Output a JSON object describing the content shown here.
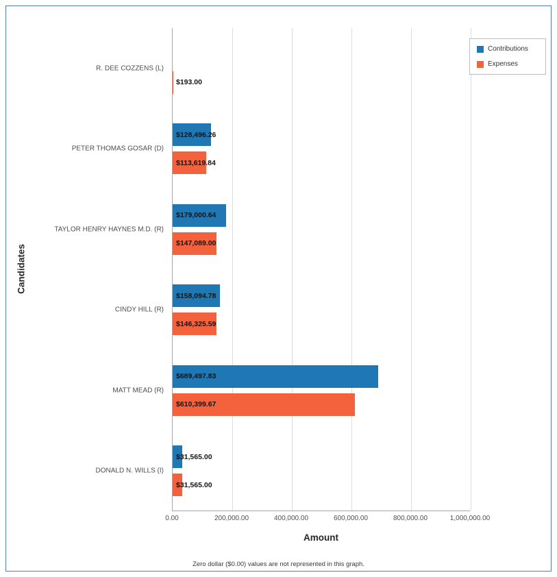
{
  "chart_data": {
    "type": "bar",
    "orientation": "horizontal",
    "title": "",
    "xlabel": "Amount",
    "ylabel": "Candidates",
    "xlim": [
      0,
      1000000
    ],
    "x_ticks": [
      "0.00",
      "200,000.00",
      "400,000.00",
      "600,000.00",
      "800,000.00",
      "1,000,000.00"
    ],
    "grid": true,
    "legend_position": "top-right",
    "categories": [
      "R. DEE COZZENS (L)",
      "PETER THOMAS GOSAR (D)",
      "TAYLOR HENRY HAYNES M.D. (R)",
      "CINDY HILL (R)",
      "MATT MEAD (R)",
      "DONALD N. WILLS (I)"
    ],
    "series": [
      {
        "name": "Contributions",
        "color": "#1f77b4",
        "values": [
          0,
          128496.26,
          179000.64,
          158094.78,
          689497.83,
          31565.0
        ],
        "labels": [
          "",
          "$128,496.26",
          "$179,000.64",
          "$158,094.78",
          "$689,497.83",
          "$31,565.00"
        ]
      },
      {
        "name": "Expenses",
        "color": "#f4613d",
        "values": [
          193.0,
          113619.84,
          147089.0,
          146325.59,
          610399.67,
          31565.0
        ],
        "labels": [
          "$193.00",
          "$113,619.84",
          "$147,089.00",
          "$146,325.59",
          "$610,399.67",
          "$31,565.00"
        ]
      }
    ],
    "note": "Zero dollar ($0.00) values are not represented in this graph."
  }
}
